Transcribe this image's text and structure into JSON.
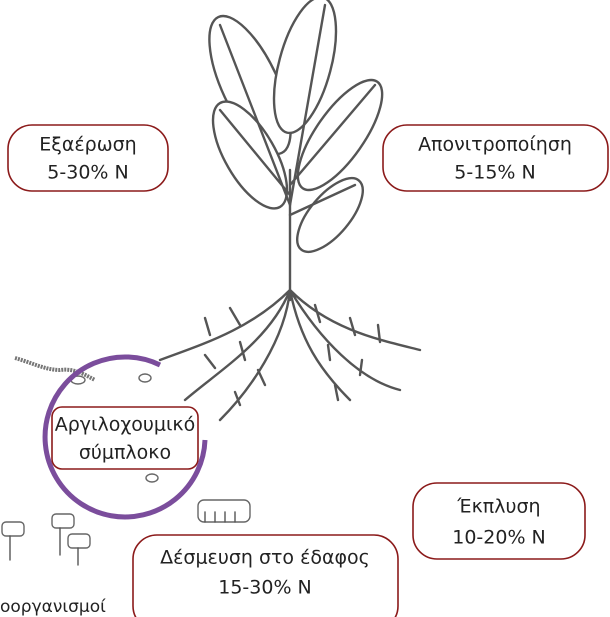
{
  "labels": {
    "volatilization": {
      "name": "Εξαέρωση",
      "share": "5-30% N"
    },
    "denitrification": {
      "name": "Απονιτροποίηση",
      "share": "5-15% N"
    },
    "clay_humus": {
      "line1": "Αργιλοχουμικό",
      "line2": "σύμπλοκο"
    },
    "leaching": {
      "name": "Έκπλυση",
      "share": "10-20% N"
    },
    "fixation": {
      "name": "Δέσμευση στο έδαφος",
      "share": "15-30% N"
    },
    "microorganisms": "οοργανισμοί"
  }
}
